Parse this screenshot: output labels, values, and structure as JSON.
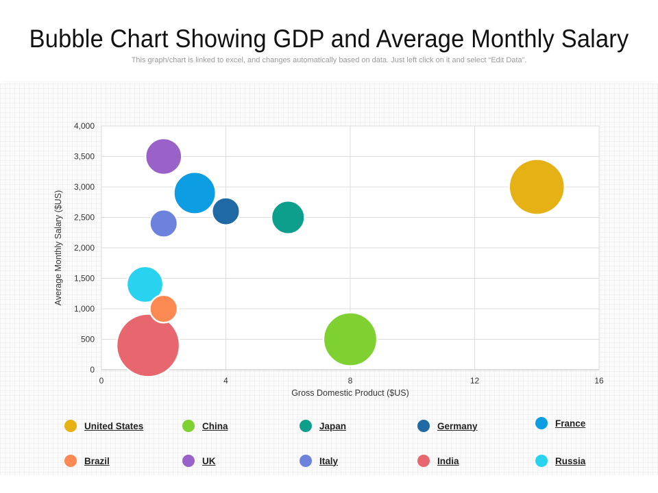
{
  "header": {
    "title": "Bubble Chart Showing GDP and Average Monthly Salary",
    "subtitle": "This graph/chart is linked to excel, and changes automatically based on data. Just left click on it and select “Edit Data”."
  },
  "chart_data": {
    "type": "scatter",
    "variant": "bubble",
    "xlabel": "Gross Domestic Product ($US)",
    "ylabel": "Average Monthly Salary ($US)",
    "xlim": [
      0,
      16
    ],
    "ylim": [
      0,
      4000
    ],
    "xticks": [
      0,
      4,
      8,
      12,
      16
    ],
    "xtick_labels": [
      "0",
      "4",
      "8",
      "12",
      "16"
    ],
    "yticks": [
      0,
      500,
      1000,
      1500,
      2000,
      2500,
      3000,
      3500,
      4000
    ],
    "ytick_labels": [
      "0",
      "500",
      "1,000",
      "1,500",
      "2,000",
      "2,500",
      "3,000",
      "3,500",
      "4,000"
    ],
    "grid": true,
    "legend_position": "bottom",
    "series": [
      {
        "name": "United States",
        "x": 14,
        "y": 3000,
        "size": 14,
        "color": "#e6b115"
      },
      {
        "name": "China",
        "x": 8,
        "y": 500,
        "size": 13,
        "color": "#7ed130"
      },
      {
        "name": "Japan",
        "x": 6,
        "y": 2500,
        "size": 5,
        "color": "#0e9e8c"
      },
      {
        "name": "Germany",
        "x": 4,
        "y": 2600,
        "size": 3.5,
        "color": "#1f6aa5"
      },
      {
        "name": "France",
        "x": 3,
        "y": 2900,
        "size": 8,
        "color": "#0c9de3"
      },
      {
        "name": "Brazil",
        "x": 2,
        "y": 1000,
        "size": 3.5,
        "color": "#fb8a52"
      },
      {
        "name": "UK",
        "x": 2,
        "y": 3500,
        "size": 6,
        "color": "#9a62c9"
      },
      {
        "name": "Italy",
        "x": 2,
        "y": 2400,
        "size": 3.5,
        "color": "#6d82dd"
      },
      {
        "name": "India",
        "x": 1.5,
        "y": 400,
        "size": 18,
        "color": "#e8676e"
      },
      {
        "name": "Russia",
        "x": 1.4,
        "y": 1400,
        "size": 6,
        "color": "#29d3ef"
      }
    ]
  }
}
